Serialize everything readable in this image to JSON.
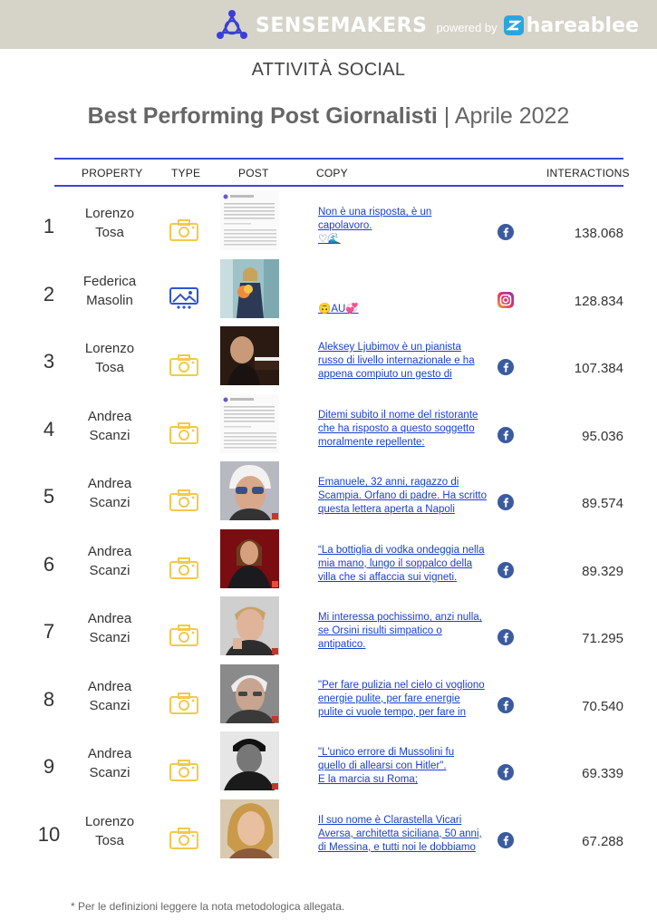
{
  "brand": {
    "name": "SENSEMAKERS",
    "powered_by": "powered by",
    "partner": "hareablee"
  },
  "section_title": "ATTIVITÀ SOCIAL",
  "report": {
    "title": "Best Performing Post Giornalisti",
    "separator": " | ",
    "period": "Aprile 2022"
  },
  "columns": {
    "property": "PROPERTY",
    "type": "TYPE",
    "post": "POST",
    "copy": "COPY",
    "interactions": "INTERACTIONS"
  },
  "rows": [
    {
      "rank": "1",
      "property": [
        "Lorenzo",
        "Tosa"
      ],
      "type": "photo-icon",
      "thumb": "text-post",
      "copy": [
        "Non è una risposta, è un",
        "capolavoro.",
        "♡🌊"
      ],
      "network": "facebook",
      "interactions": "138.068"
    },
    {
      "rank": "2",
      "property": [
        "Federica",
        "Masolin"
      ],
      "type": "album-icon",
      "thumb": "woman-photo",
      "copy": [
        "🙃AU💞"
      ],
      "network": "instagram",
      "interactions": "128.834"
    },
    {
      "rank": "3",
      "property": [
        "Lorenzo",
        "Tosa"
      ],
      "type": "photo-icon",
      "thumb": "pianist-photo",
      "copy": [
        "Aleksey Ljubimov è un pianista",
        "russo di livello internazionale e ha",
        "appena compiuto un gesto di"
      ],
      "network": "facebook",
      "interactions": "107.384"
    },
    {
      "rank": "4",
      "property": [
        "Andrea",
        "Scanzi"
      ],
      "type": "photo-icon",
      "thumb": "text-post",
      "copy": [
        "Ditemi subito il nome del ristorante",
        "che ha risposto a questo soggetto",
        "moralmente repellente:"
      ],
      "network": "facebook",
      "interactions": "95.036"
    },
    {
      "rank": "5",
      "property": [
        "Andrea",
        "Scanzi"
      ],
      "type": "photo-icon",
      "thumb": "portrait-glasses",
      "copy": [
        "Emanuele, 32 anni, ragazzo di",
        "Scampia. Orfano di padre. Ha scritto",
        "questa lettera aperta a Napoli"
      ],
      "network": "facebook",
      "interactions": "89.574"
    },
    {
      "rank": "6",
      "property": [
        "Andrea",
        "Scanzi"
      ],
      "type": "photo-icon",
      "thumb": "portrait-red",
      "copy": [
        "“La bottiglia di vodka ondeggia nella",
        "mia mano, lungo il soppalco della",
        "villa che si affaccia sui vigneti."
      ],
      "network": "facebook",
      "interactions": "89.329"
    },
    {
      "rank": "7",
      "property": [
        "Andrea",
        "Scanzi"
      ],
      "type": "photo-icon",
      "thumb": "portrait-man",
      "copy": [
        "Mi interessa pochissimo, anzi nulla,",
        "se Orsini risulti simpatico o",
        "antipatico."
      ],
      "network": "facebook",
      "interactions": "71.295"
    },
    {
      "rank": "8",
      "property": [
        "Andrea",
        "Scanzi"
      ],
      "type": "photo-icon",
      "thumb": "portrait-old",
      "copy": [
        "\"Per fare pulizia nel cielo ci vogliono",
        "energie pulite, per fare energie",
        "pulite ci vuole tempo, per fare in"
      ],
      "network": "facebook",
      "interactions": "70.540"
    },
    {
      "rank": "9",
      "property": [
        "Andrea",
        "Scanzi"
      ],
      "type": "photo-icon",
      "thumb": "portrait-bw",
      "copy": [
        "\"L'unico errore di Mussolini fu",
        "quello di allearsi con Hitler\".",
        "E la marcia su Roma;"
      ],
      "network": "facebook",
      "interactions": "69.339"
    },
    {
      "rank": "10",
      "property": [
        "Lorenzo",
        "Tosa"
      ],
      "type": "photo-icon",
      "thumb": "portrait-woman",
      "copy": [
        "Il suo nome è Clarastella Vicari",
        "Aversa, architetta siciliana, 50 anni,",
        "di Messina, e tutti noi le dobbiamo"
      ],
      "network": "facebook",
      "interactions": "67.288"
    }
  ],
  "footnote": "* Per le definizioni leggere la nota metodologica allegata.",
  "colors": {
    "accent_rule": "#3b47d6",
    "link": "#1a3fd0",
    "photo_icon": "#f2c94c",
    "album_icon": "#2f55d4",
    "facebook": "#3b5ba0",
    "topbar": "#d6d3c9"
  }
}
